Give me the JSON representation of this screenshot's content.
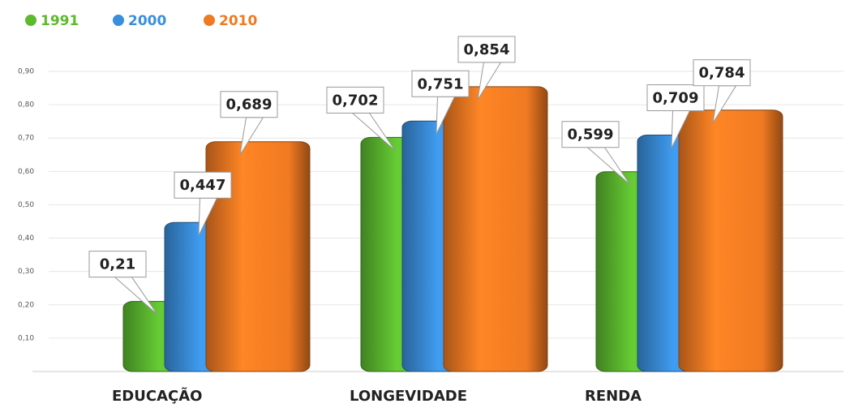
{
  "chart_data": {
    "type": "bar",
    "categories": [
      "EDUCAÇÃO",
      "LONGEVIDADE",
      "RENDA"
    ],
    "series": [
      {
        "name": "1991",
        "color": "#5dba2f",
        "values": [
          0.21,
          0.702,
          0.599
        ],
        "value_labels": [
          "0,21",
          "0,702",
          "0,599"
        ]
      },
      {
        "name": "2000",
        "color": "#3a8fdc",
        "values": [
          0.447,
          0.751,
          0.709
        ],
        "value_labels": [
          "0,447",
          "0,751",
          "0,709"
        ]
      },
      {
        "name": "2010",
        "color": "#f07a22",
        "values": [
          0.689,
          0.854,
          0.784
        ],
        "value_labels": [
          "0,689",
          "0,854",
          "0,784"
        ]
      }
    ],
    "ylim": [
      0,
      0.9
    ],
    "yticks": [
      {
        "value": 0.1,
        "label": "0,10"
      },
      {
        "value": 0.2,
        "label": "0,20"
      },
      {
        "value": 0.3,
        "label": "0,30"
      },
      {
        "value": 0.4,
        "label": "0,40"
      },
      {
        "value": 0.5,
        "label": "0,50"
      },
      {
        "value": 0.6,
        "label": "0,60"
      },
      {
        "value": 0.7,
        "label": "0,70"
      },
      {
        "value": 0.8,
        "label": "0,80"
      },
      {
        "value": 0.9,
        "label": "0,90"
      }
    ],
    "grid": true,
    "legend": "top-left"
  }
}
